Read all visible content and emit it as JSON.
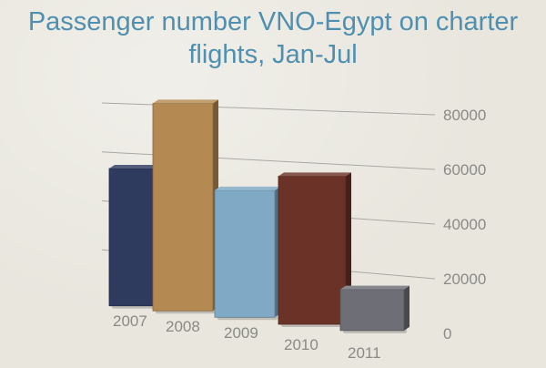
{
  "title_lines": [
    "Passenger number VNO-Egypt on charter",
    "flights, Jan-Jul"
  ],
  "colors": {
    "title": "#4f8fb0",
    "background": "#e8e6dd",
    "grid": "#a9a9a4",
    "tick_text": "#8a8a86"
  },
  "chart_data": {
    "type": "bar",
    "title": "Passenger number VNO-Egypt on charter flights, Jan-Jul",
    "categories": [
      "2007",
      "2008",
      "2009",
      "2010",
      "2011"
    ],
    "values": [
      54000,
      81000,
      48000,
      55000,
      14000
    ],
    "bar_colors": [
      "#2e3a5e",
      "#b48a52",
      "#7fa9c4",
      "#6b3327",
      "#6e6e76"
    ],
    "ylim": [
      0,
      80000
    ],
    "yticks": [
      "0",
      "20000",
      "40000",
      "60000",
      "80000"
    ],
    "ytick_values": [
      0,
      20000,
      40000,
      60000,
      80000
    ],
    "xlabel": "",
    "ylabel": "",
    "grid": true,
    "legend": "none"
  }
}
